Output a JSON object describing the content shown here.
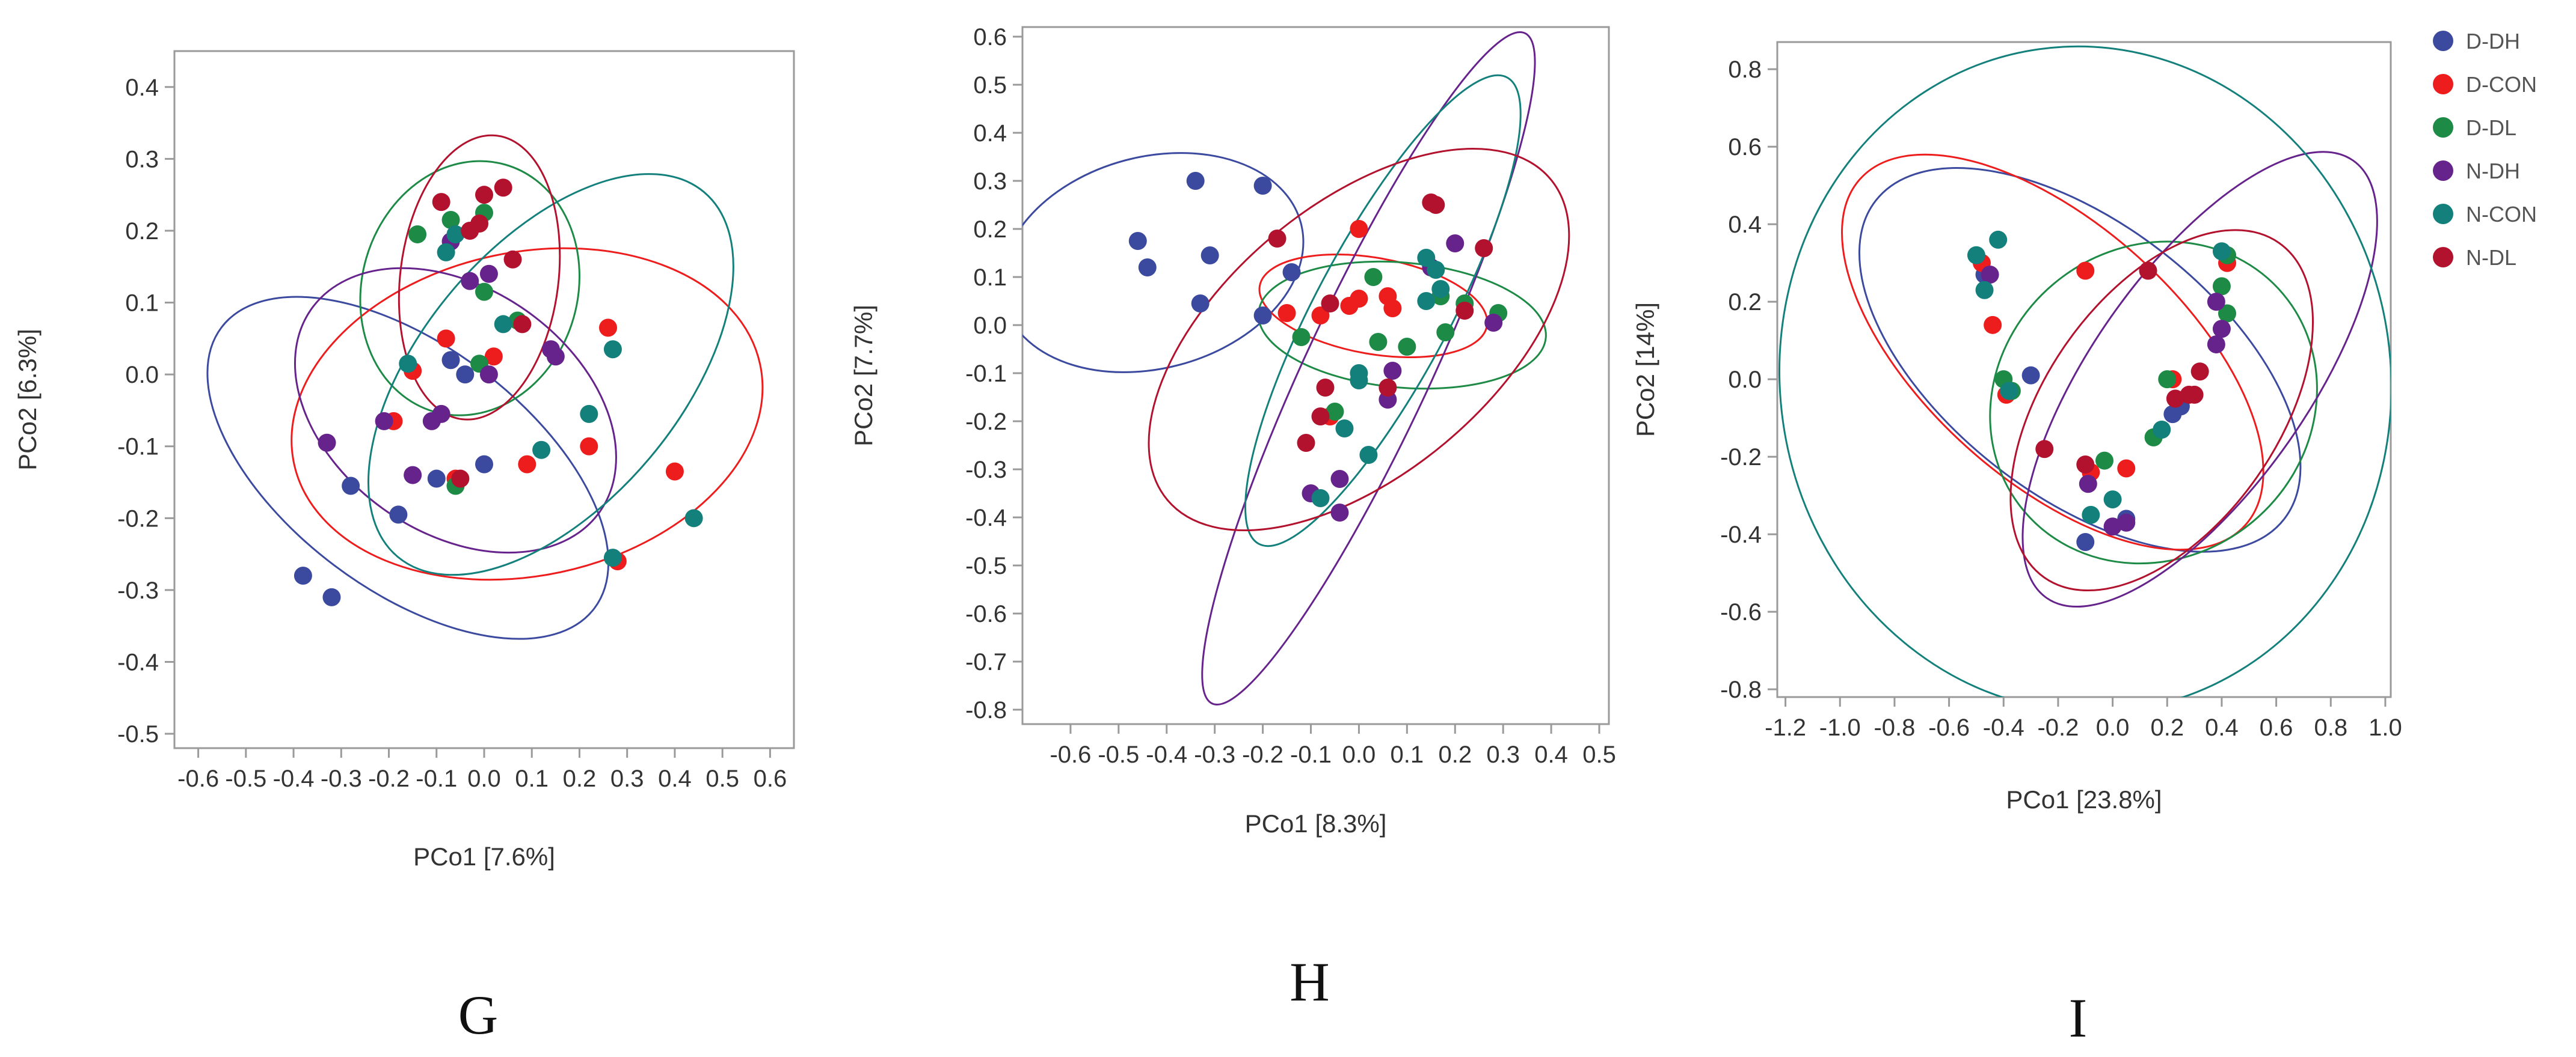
{
  "colors": {
    "D-DH": "#3b4a9e",
    "D-CON": "#ee1d1d",
    "D-DL": "#1d8a46",
    "N-DH": "#66238c",
    "N-CON": "#14807c",
    "N-DL": "#b3122e"
  },
  "legend": {
    "entries": [
      "D-DH",
      "D-CON",
      "D-DL",
      "N-DH",
      "N-CON",
      "N-DL"
    ]
  },
  "chart_data": [
    {
      "type": "scatter",
      "panel_label": "G",
      "xlabel": "PCo1 [7.6%]",
      "ylabel": "PCo2 [6.3%]",
      "xlim": [
        -0.65,
        0.65
      ],
      "ylim": [
        -0.52,
        0.45
      ],
      "xticks": [
        -0.6,
        -0.5,
        -0.4,
        -0.3,
        -0.2,
        -0.1,
        0.0,
        0.1,
        0.2,
        0.3,
        0.4,
        0.5,
        0.6
      ],
      "xtick_labels": [
        "-0.6",
        "-0.5",
        "-0.4",
        "-0.3",
        "-0.2",
        "-0.1",
        "0.0",
        "0.1",
        "0.2",
        "0.3",
        "0.4",
        "0.5",
        "0.6"
      ],
      "yticks": [
        -0.5,
        -0.4,
        -0.3,
        -0.2,
        -0.1,
        0.0,
        0.1,
        0.2,
        0.3,
        0.4
      ],
      "ytick_labels": [
        "-0.5",
        "-0.4",
        "-0.3",
        "-0.2",
        "-0.1",
        "0.0",
        "0.1",
        "0.2",
        "0.3",
        "0.4"
      ],
      "series": [
        {
          "name": "D-DH",
          "points": [
            [
              -0.38,
              -0.28
            ],
            [
              -0.32,
              -0.31
            ],
            [
              -0.28,
              -0.155
            ],
            [
              -0.18,
              -0.195
            ],
            [
              -0.07,
              0.02
            ],
            [
              -0.04,
              0.0
            ],
            [
              0.0,
              -0.125
            ],
            [
              -0.1,
              -0.145
            ]
          ]
        },
        {
          "name": "D-CON",
          "points": [
            [
              -0.19,
              -0.065
            ],
            [
              -0.15,
              0.005
            ],
            [
              -0.08,
              0.05
            ],
            [
              0.02,
              0.025
            ],
            [
              0.09,
              -0.125
            ],
            [
              0.22,
              -0.1
            ],
            [
              0.26,
              0.065
            ],
            [
              0.28,
              -0.26
            ],
            [
              0.4,
              -0.135
            ],
            [
              -0.06,
              -0.145
            ]
          ]
        },
        {
          "name": "D-DL",
          "points": [
            [
              -0.14,
              0.195
            ],
            [
              -0.07,
              0.215
            ],
            [
              0.0,
              0.225
            ],
            [
              0.0,
              0.115
            ],
            [
              -0.01,
              0.015
            ],
            [
              0.07,
              0.075
            ],
            [
              -0.06,
              -0.155
            ]
          ]
        },
        {
          "name": "N-DH",
          "points": [
            [
              -0.33,
              -0.095
            ],
            [
              -0.21,
              -0.065
            ],
            [
              -0.15,
              -0.14
            ],
            [
              -0.11,
              -0.065
            ],
            [
              -0.09,
              -0.055
            ],
            [
              -0.03,
              0.13
            ],
            [
              0.01,
              0.14
            ],
            [
              0.01,
              0.0
            ],
            [
              0.14,
              0.035
            ],
            [
              0.15,
              0.025
            ],
            [
              -0.07,
              0.185
            ]
          ]
        },
        {
          "name": "N-CON",
          "points": [
            [
              -0.16,
              0.015
            ],
            [
              -0.08,
              0.17
            ],
            [
              -0.06,
              0.195
            ],
            [
              0.04,
              0.07
            ],
            [
              0.12,
              -0.105
            ],
            [
              0.22,
              -0.055
            ],
            [
              0.27,
              0.035
            ],
            [
              0.27,
              -0.255
            ],
            [
              0.44,
              -0.2
            ]
          ]
        },
        {
          "name": "N-DL",
          "points": [
            [
              -0.09,
              0.24
            ],
            [
              -0.03,
              0.2
            ],
            [
              0.0,
              0.25
            ],
            [
              0.04,
              0.26
            ],
            [
              0.06,
              0.16
            ],
            [
              0.08,
              0.07
            ],
            [
              -0.01,
              0.21
            ],
            [
              -0.05,
              -0.145
            ]
          ]
        }
      ],
      "ellipses": [
        {
          "series": "D-DH",
          "cx": -0.16,
          "cy": -0.13,
          "rx": 0.49,
          "ry": 0.17,
          "angle_deg": 37
        },
        {
          "series": "D-CON",
          "cx": 0.09,
          "cy": -0.055,
          "rx": 0.5,
          "ry": 0.225,
          "angle_deg": -12
        },
        {
          "series": "D-DL",
          "cx": -0.03,
          "cy": 0.12,
          "rx": 0.27,
          "ry": 0.15,
          "angle_deg": -74
        },
        {
          "series": "N-DH",
          "cx": -0.06,
          "cy": -0.05,
          "rx": 0.37,
          "ry": 0.17,
          "angle_deg": 35
        },
        {
          "series": "N-CON",
          "cx": 0.14,
          "cy": 0.0,
          "rx": 0.5,
          "ry": 0.18,
          "angle_deg": -50
        },
        {
          "series": "N-DL",
          "cx": -0.01,
          "cy": 0.135,
          "rx": 0.3,
          "ry": 0.11,
          "angle_deg": -83
        }
      ]
    },
    {
      "type": "scatter",
      "panel_label": "H",
      "xlabel": "PCo1 [8.3%]",
      "ylabel": "PCo2 [7.7%]",
      "xlim": [
        -0.7,
        0.52
      ],
      "ylim": [
        -0.83,
        0.62
      ],
      "xticks": [
        -0.6,
        -0.5,
        -0.4,
        -0.3,
        -0.2,
        -0.1,
        0.0,
        0.1,
        0.2,
        0.3,
        0.4,
        0.5
      ],
      "xtick_labels": [
        "-0.6",
        "-0.5",
        "-0.4",
        "-0.3",
        "-0.2",
        "-0.1",
        "0.0",
        "0.1",
        "0.2",
        "0.3",
        "0.4",
        "0.5"
      ],
      "yticks": [
        -0.8,
        -0.7,
        -0.6,
        -0.5,
        -0.4,
        -0.3,
        -0.2,
        -0.1,
        0.0,
        0.1,
        0.2,
        0.3,
        0.4,
        0.5,
        0.6
      ],
      "ytick_labels": [
        "-0.8",
        "-0.7",
        "-0.6",
        "-0.5",
        "-0.4",
        "-0.3",
        "-0.2",
        "-0.1",
        "0.0",
        "0.1",
        "0.2",
        "0.3",
        "0.4",
        "0.5",
        "0.6"
      ],
      "series": [
        {
          "name": "D-DH",
          "points": [
            [
              -0.46,
              0.175
            ],
            [
              -0.44,
              0.12
            ],
            [
              -0.34,
              0.3
            ],
            [
              -0.31,
              0.145
            ],
            [
              -0.33,
              0.045
            ],
            [
              -0.2,
              0.29
            ],
            [
              -0.2,
              0.02
            ],
            [
              -0.14,
              0.11
            ]
          ]
        },
        {
          "name": "D-CON",
          "points": [
            [
              -0.15,
              0.025
            ],
            [
              -0.08,
              0.02
            ],
            [
              -0.02,
              0.04
            ],
            [
              0.0,
              0.2
            ],
            [
              0.0,
              0.055
            ],
            [
              0.06,
              0.06
            ],
            [
              0.07,
              0.035
            ],
            [
              -0.06,
              -0.19
            ]
          ]
        },
        {
          "name": "D-DL",
          "points": [
            [
              -0.12,
              -0.025
            ],
            [
              -0.05,
              -0.18
            ],
            [
              0.03,
              0.1
            ],
            [
              0.04,
              -0.035
            ],
            [
              0.1,
              -0.045
            ],
            [
              0.18,
              -0.015
            ],
            [
              0.22,
              0.045
            ],
            [
              0.29,
              0.025
            ],
            [
              0.17,
              0.06
            ]
          ]
        },
        {
          "name": "N-DH",
          "points": [
            [
              -0.1,
              -0.35
            ],
            [
              -0.04,
              -0.32
            ],
            [
              -0.04,
              -0.39
            ],
            [
              0.06,
              -0.155
            ],
            [
              0.07,
              -0.095
            ],
            [
              0.15,
              0.12
            ],
            [
              0.2,
              0.17
            ],
            [
              0.28,
              0.005
            ]
          ]
        },
        {
          "name": "N-CON",
          "points": [
            [
              -0.08,
              -0.36
            ],
            [
              0.0,
              -0.1
            ],
            [
              0.0,
              -0.115
            ],
            [
              -0.03,
              -0.215
            ],
            [
              0.02,
              -0.27
            ],
            [
              0.14,
              0.14
            ],
            [
              0.16,
              0.115
            ],
            [
              0.17,
              0.075
            ],
            [
              0.14,
              0.05
            ]
          ]
        },
        {
          "name": "N-DL",
          "points": [
            [
              -0.17,
              0.18
            ],
            [
              -0.11,
              -0.245
            ],
            [
              -0.07,
              -0.13
            ],
            [
              -0.06,
              0.045
            ],
            [
              0.06,
              -0.13
            ],
            [
              0.15,
              0.255
            ],
            [
              0.16,
              0.25
            ],
            [
              0.22,
              0.03
            ],
            [
              0.26,
              0.16
            ],
            [
              -0.08,
              -0.19
            ]
          ]
        }
      ],
      "ellipses": [
        {
          "series": "D-DH",
          "cx": -0.43,
          "cy": 0.13,
          "rx": 0.32,
          "ry": 0.22,
          "angle_deg": -15
        },
        {
          "series": "D-CON",
          "cx": 0.03,
          "cy": 0.04,
          "rx": 0.24,
          "ry": 0.1,
          "angle_deg": 10
        },
        {
          "series": "D-DL",
          "cx": 0.09,
          "cy": 0.0,
          "rx": 0.3,
          "ry": 0.13,
          "angle_deg": 5
        },
        {
          "series": "N-DH",
          "cx": 0.02,
          "cy": -0.09,
          "rx": 0.77,
          "ry": 0.13,
          "angle_deg": -65
        },
        {
          "series": "N-CON",
          "cx": 0.05,
          "cy": 0.03,
          "rx": 0.55,
          "ry": 0.14,
          "angle_deg": -62
        },
        {
          "series": "N-DL",
          "cx": 0.0,
          "cy": -0.03,
          "rx": 0.52,
          "ry": 0.28,
          "angle_deg": -40
        }
      ]
    },
    {
      "type": "scatter",
      "panel_label": "I",
      "xlabel": "PCo1 [23.8%]",
      "ylabel": "PCo2 [14%]",
      "xlim": [
        -1.23,
        1.02
      ],
      "ylim": [
        -0.82,
        0.87
      ],
      "xticks": [
        -1.2,
        -1.0,
        -0.8,
        -0.6,
        -0.4,
        -0.2,
        0.0,
        0.2,
        0.4,
        0.6,
        0.8,
        1.0
      ],
      "xtick_labels": [
        "-1.2",
        "-1.0",
        "-0.8",
        "-0.6",
        "-0.4",
        "-0.2",
        "0.0",
        "0.2",
        "0.4",
        "0.6",
        "0.8",
        "1.0"
      ],
      "yticks": [
        -0.8,
        -0.6,
        -0.4,
        -0.2,
        0.0,
        0.2,
        0.4,
        0.6,
        0.8
      ],
      "ytick_labels": [
        "-0.8",
        "-0.6",
        "-0.4",
        "-0.2",
        "0.0",
        "0.2",
        "0.4",
        "0.6",
        "0.8"
      ],
      "series": [
        {
          "name": "D-DH",
          "points": [
            [
              -0.3,
              0.01
            ],
            [
              -0.1,
              -0.42
            ],
            [
              0.05,
              -0.36
            ],
            [
              0.22,
              -0.09
            ],
            [
              0.25,
              -0.07
            ],
            [
              -0.47,
              0.27
            ]
          ]
        },
        {
          "name": "D-CON",
          "points": [
            [
              -0.48,
              0.3
            ],
            [
              -0.44,
              0.14
            ],
            [
              -0.1,
              0.28
            ],
            [
              -0.08,
              -0.24
            ],
            [
              0.05,
              -0.23
            ],
            [
              0.22,
              0.0
            ],
            [
              0.42,
              0.3
            ],
            [
              -0.39,
              -0.04
            ]
          ]
        },
        {
          "name": "D-DL",
          "points": [
            [
              -0.4,
              0.0
            ],
            [
              -0.03,
              -0.21
            ],
            [
              0.15,
              -0.15
            ],
            [
              0.2,
              0.0
            ],
            [
              0.42,
              0.17
            ],
            [
              0.4,
              0.24
            ],
            [
              0.42,
              0.32
            ],
            [
              -0.37,
              -0.03
            ]
          ]
        },
        {
          "name": "N-DH",
          "points": [
            [
              -0.45,
              0.27
            ],
            [
              -0.09,
              -0.27
            ],
            [
              0.0,
              -0.38
            ],
            [
              0.05,
              -0.37
            ],
            [
              0.38,
              0.09
            ],
            [
              0.38,
              0.2
            ],
            [
              0.4,
              0.13
            ]
          ]
        },
        {
          "name": "N-CON",
          "points": [
            [
              -0.5,
              0.32
            ],
            [
              -0.42,
              0.36
            ],
            [
              -0.38,
              -0.03
            ],
            [
              -0.08,
              -0.35
            ],
            [
              0.0,
              -0.31
            ],
            [
              0.18,
              -0.13
            ],
            [
              0.4,
              0.33
            ],
            [
              -0.47,
              0.23
            ]
          ]
        },
        {
          "name": "N-DL",
          "points": [
            [
              -0.25,
              -0.18
            ],
            [
              0.13,
              0.28
            ],
            [
              0.23,
              -0.05
            ],
            [
              0.3,
              -0.04
            ],
            [
              0.32,
              0.02
            ],
            [
              0.28,
              -0.04
            ],
            [
              -0.1,
              -0.22
            ]
          ]
        }
      ],
      "ellipses": [
        {
          "series": "D-DH",
          "cx": -0.12,
          "cy": 0.05,
          "rx": 0.95,
          "ry": 0.35,
          "angle_deg": 38
        },
        {
          "series": "D-CON",
          "cx": -0.22,
          "cy": 0.07,
          "rx": 0.95,
          "ry": 0.33,
          "angle_deg": 42
        },
        {
          "series": "D-DL",
          "cx": 0.15,
          "cy": -0.06,
          "rx": 0.62,
          "ry": 0.4,
          "angle_deg": -40
        },
        {
          "series": "N-DH",
          "cx": 0.32,
          "cy": 0.0,
          "rx": 0.98,
          "ry": 0.28,
          "angle_deg": -55
        },
        {
          "series": "N-CON",
          "cx": -0.1,
          "cy": 0.0,
          "rx": 1.12,
          "ry": 0.86,
          "angle_deg": -8
        },
        {
          "series": "N-DL",
          "cx": 0.18,
          "cy": -0.08,
          "rx": 0.75,
          "ry": 0.3,
          "angle_deg": -55
        }
      ]
    }
  ]
}
